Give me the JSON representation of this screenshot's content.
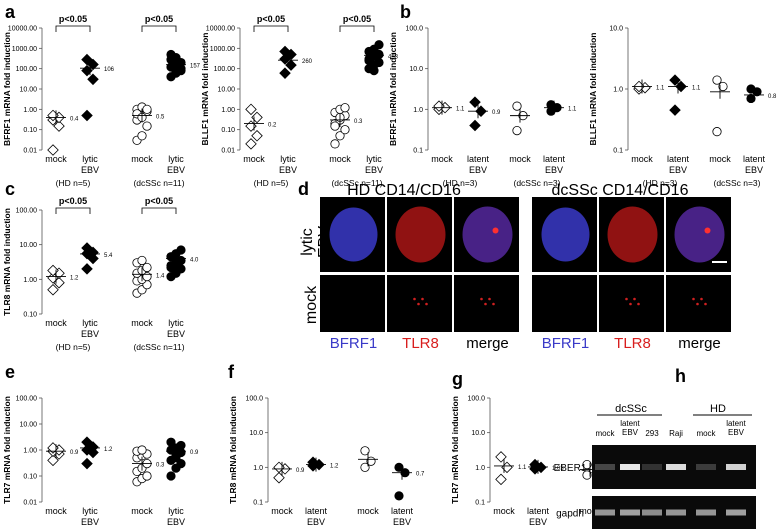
{
  "panel_letters": {
    "a": "a",
    "b": "b",
    "c": "c",
    "d": "d",
    "e": "e",
    "f": "f",
    "g": "g",
    "h": "h"
  },
  "chart_data": [
    {
      "id": "a1",
      "type": "scatter",
      "scale": "log",
      "ylabel": "BFRF1 mRNA fold induction",
      "yticks": [
        "0.01",
        "0.10",
        "1.00",
        "10.00",
        "100.00",
        "1000.00",
        "10000.00"
      ],
      "ylim": [
        0.01,
        10000
      ],
      "groups": [
        {
          "label": "mock",
          "marker": "diamond",
          "fill": "open",
          "mean": 0.4,
          "mean_label": "0.4",
          "values": [
            0.01,
            0.15,
            0.3,
            0.4,
            0.5
          ]
        },
        {
          "label": "lytic\nEBV",
          "marker": "diamond",
          "fill": "filled",
          "mean": 106,
          "mean_label": "106",
          "values": [
            0.5,
            30,
            80,
            160,
            280
          ]
        },
        {
          "label": "mock",
          "marker": "circle",
          "fill": "open",
          "mean": 0.5,
          "mean_label": "0.5",
          "values": [
            0.03,
            0.05,
            0.15,
            0.3,
            0.5,
            0.8,
            1.0,
            1.3,
            1.0,
            0.6,
            0.4
          ]
        },
        {
          "label": "lytic\nEBV",
          "marker": "circle",
          "fill": "filled",
          "mean": 157,
          "mean_label": "157",
          "values": [
            40,
            70,
            100,
            120,
            150,
            200,
            280,
            350,
            80,
            500,
            60
          ]
        }
      ],
      "group_captions": [
        "(HD n=5)",
        "(dcSSc n=11)"
      ],
      "significance": [
        "p<0.05",
        "p<0.05"
      ]
    },
    {
      "id": "a2",
      "type": "scatter",
      "scale": "log",
      "ylabel": "BLLF1 mRNA fold induction",
      "yticks": [
        "0.01",
        "0.10",
        "1.00",
        "10.00",
        "100.00",
        "1000.00",
        "10000.00"
      ],
      "ylim": [
        0.01,
        10000
      ],
      "groups": [
        {
          "label": "mock",
          "marker": "diamond",
          "fill": "open",
          "mean": 0.2,
          "mean_label": "0.2",
          "values": [
            0.02,
            0.05,
            0.15,
            0.4,
            1.0
          ]
        },
        {
          "label": "lytic\nEBV",
          "marker": "diamond",
          "fill": "filled",
          "mean": 260,
          "mean_label": "260",
          "values": [
            60,
            150,
            300,
            500,
            700
          ]
        },
        {
          "label": "mock",
          "marker": "circle",
          "fill": "open",
          "mean": 0.3,
          "mean_label": "0.3",
          "values": [
            0.02,
            0.05,
            0.1,
            0.2,
            0.3,
            0.5,
            0.7,
            1.0,
            1.2,
            0.15,
            0.4
          ]
        },
        {
          "label": "lytic\nEBV",
          "marker": "circle",
          "fill": "filled",
          "mean": 453,
          "mean_label": "453",
          "values": [
            100,
            150,
            200,
            300,
            400,
            500,
            700,
            900,
            1500,
            250,
            80
          ]
        }
      ],
      "group_captions": [
        "(HD n=5)",
        "(dcSSc n=11)"
      ],
      "significance": [
        "p<0.05",
        "p<0.05"
      ]
    },
    {
      "id": "b1",
      "type": "scatter",
      "scale": "log",
      "ylabel": "BFRF1 mRNA fold induction",
      "yticks": [
        "0.1",
        "1.0",
        "10.0",
        "100.0"
      ],
      "ylim": [
        0.1,
        100
      ],
      "groups": [
        {
          "label": "mock",
          "marker": "diamond",
          "fill": "open",
          "mean": 1.1,
          "mean_label": "1.1",
          "values": [
            1.0,
            1.1,
            1.2
          ]
        },
        {
          "label": "latent\nEBV",
          "marker": "diamond",
          "fill": "filled",
          "mean": 0.9,
          "mean_label": "0.9",
          "values": [
            0.4,
            0.9,
            1.5
          ]
        },
        {
          "label": "mock",
          "marker": "circle",
          "fill": "open",
          "mean": 0.7,
          "mean_label": "",
          "values": [
            0.3,
            0.7,
            1.2
          ]
        },
        {
          "label": "latent\nEBV",
          "marker": "circle",
          "fill": "filled",
          "mean": 1.1,
          "mean_label": "1.1",
          "values": [
            0.9,
            1.1,
            1.3
          ]
        }
      ],
      "group_captions": [
        "(HD n=3)",
        "(dcSSc n=3)"
      ],
      "significance": []
    },
    {
      "id": "b2",
      "type": "scatter",
      "scale": "log",
      "ylabel": "BLLF1 mRNA fold induction",
      "yticks": [
        "0.1",
        "1.0",
        "10.0"
      ],
      "ylim": [
        0.1,
        10
      ],
      "groups": [
        {
          "label": "mock",
          "marker": "diamond",
          "fill": "open",
          "mean": 1.1,
          "mean_label": "1.1",
          "values": [
            1.0,
            1.05,
            1.1
          ]
        },
        {
          "label": "latent\nEBV",
          "marker": "diamond",
          "fill": "filled",
          "mean": 1.1,
          "mean_label": "1.1",
          "values": [
            0.45,
            1.1,
            1.4
          ]
        },
        {
          "label": "mock",
          "marker": "circle",
          "fill": "open",
          "mean": 0.9,
          "mean_label": "",
          "values": [
            0.2,
            1.1,
            1.4
          ]
        },
        {
          "label": "latent\nEBV",
          "marker": "circle",
          "fill": "filled",
          "mean": 0.8,
          "mean_label": "0.8",
          "values": [
            0.7,
            0.9,
            1.0
          ]
        }
      ],
      "group_captions": [
        "(HD n=3)",
        "(dcSSc n=3)"
      ],
      "significance": []
    },
    {
      "id": "c",
      "type": "scatter",
      "scale": "log",
      "ylabel": "TLR8 mRNA fold induction",
      "yticks": [
        "0.10",
        "1.00",
        "10.00",
        "100.00"
      ],
      "ylim": [
        0.1,
        100
      ],
      "groups": [
        {
          "label": "mock",
          "marker": "diamond",
          "fill": "open",
          "mean": 1.2,
          "mean_label": "1.2",
          "values": [
            0.5,
            0.8,
            1.1,
            1.5,
            1.8
          ]
        },
        {
          "label": "lytic\nEBV",
          "marker": "diamond",
          "fill": "filled",
          "mean": 5.4,
          "mean_label": "5.4",
          "values": [
            2.0,
            4.0,
            5.5,
            6.0,
            8.0
          ]
        },
        {
          "label": "mock",
          "marker": "circle",
          "fill": "open",
          "mean": 1.4,
          "mean_label": "1.4",
          "values": [
            0.4,
            0.5,
            0.7,
            0.9,
            1.0,
            1.2,
            1.5,
            1.8,
            2.2,
            3.0,
            3.5
          ]
        },
        {
          "label": "lytic\nEBV",
          "marker": "circle",
          "fill": "filled",
          "mean": 4.0,
          "mean_label": "4.0",
          "values": [
            1.2,
            1.5,
            2.0,
            2.5,
            3.0,
            3.5,
            4.5,
            5.5,
            7.0,
            2.2,
            1.8
          ]
        }
      ],
      "group_captions": [
        "(HD n=5)",
        "(dcSSc n=11)"
      ],
      "significance": [
        "p<0.05",
        "p<0.05"
      ]
    },
    {
      "id": "e",
      "type": "scatter",
      "scale": "log",
      "ylabel": "TLR7 mRNA fold induction",
      "yticks": [
        "0.01",
        "0.10",
        "1.00",
        "10.00",
        "100.00"
      ],
      "ylim": [
        0.01,
        100
      ],
      "groups": [
        {
          "label": "mock",
          "marker": "diamond",
          "fill": "open",
          "mean": 0.9,
          "mean_label": "0.9",
          "values": [
            0.4,
            0.7,
            0.9,
            1.0,
            1.2
          ]
        },
        {
          "label": "lytic\nEBV",
          "marker": "diamond",
          "fill": "filled",
          "mean": 1.2,
          "mean_label": "1.2",
          "values": [
            0.3,
            0.8,
            1.0,
            1.3,
            2.0
          ]
        },
        {
          "label": "mock",
          "marker": "circle",
          "fill": "open",
          "mean": 0.3,
          "mean_label": "0.3",
          "values": [
            0.06,
            0.08,
            0.1,
            0.15,
            0.2,
            0.3,
            0.5,
            0.6,
            0.7,
            0.9,
            1.0
          ]
        },
        {
          "label": "lytic\nEBV",
          "marker": "circle",
          "fill": "filled",
          "mean": 0.9,
          "mean_label": "0.9",
          "values": [
            0.1,
            0.2,
            0.3,
            0.4,
            0.6,
            0.8,
            1.0,
            1.2,
            1.5,
            2.0,
            0.5
          ]
        }
      ],
      "group_captions": [
        "(HD n=5)",
        "(dcSSc n=11)"
      ],
      "significance": []
    },
    {
      "id": "f",
      "type": "scatter",
      "scale": "log",
      "ylabel": "TLR8 mRNA fold induction",
      "yticks": [
        "0.1",
        "1.0",
        "10.0",
        "100.0"
      ],
      "ylim": [
        0.1,
        100
      ],
      "groups": [
        {
          "label": "mock",
          "marker": "diamond",
          "fill": "open",
          "mean": 0.9,
          "mean_label": "0.9",
          "values": [
            0.5,
            0.9,
            1.0
          ]
        },
        {
          "label": "latent\nEBV",
          "marker": "diamond",
          "fill": "filled",
          "mean": 1.2,
          "mean_label": "1.2",
          "values": [
            1.1,
            1.2,
            1.4
          ]
        },
        {
          "label": "mock",
          "marker": "circle",
          "fill": "open",
          "mean": 1.7,
          "mean_label": "",
          "values": [
            1.0,
            1.5,
            3.0
          ]
        },
        {
          "label": "latent\nEBV",
          "marker": "circle",
          "fill": "filled",
          "mean": 0.7,
          "mean_label": "0.7",
          "values": [
            0.15,
            0.7,
            1.0
          ]
        }
      ],
      "group_captions": [
        "(HD n=3)",
        "(dcSSc n=3)"
      ],
      "significance": []
    },
    {
      "id": "g",
      "type": "scatter",
      "scale": "log",
      "ylabel": "TLR7 mRNA fold induction",
      "yticks": [
        "0.1",
        "1.0",
        "10.0",
        "100.0"
      ],
      "ylim": [
        0.1,
        100
      ],
      "groups": [
        {
          "label": "mock",
          "marker": "diamond",
          "fill": "open",
          "mean": 1.1,
          "mean_label": "1.1",
          "values": [
            0.45,
            1.0,
            2.0
          ]
        },
        {
          "label": "latent\nEBV",
          "marker": "diamond",
          "fill": "filled",
          "mean": 1.03,
          "mean_label": "1.03",
          "values": [
            0.9,
            1.0,
            1.2
          ]
        },
        {
          "label": "mock",
          "marker": "circle",
          "fill": "open",
          "mean": 0.86,
          "mean_label": "0.86",
          "values": [
            0.6,
            0.9,
            1.2
          ]
        },
        {
          "label": "latent\nEBV",
          "marker": "circle",
          "fill": "filled",
          "mean": 1.1,
          "mean_label": "1.1",
          "values": [
            0.8,
            1.1,
            1.5
          ]
        }
      ],
      "group_captions": [
        "(HD n=3)",
        "(dcSSc n=3)"
      ],
      "significance": []
    }
  ],
  "panel_d": {
    "titles": [
      "HD CD14/CD16",
      "dcSSc CD14/CD16"
    ],
    "row_labels": [
      "lytic\nEBV",
      "mock"
    ],
    "channel_labels": [
      {
        "text": "BFRF1",
        "color": "#3a3ac8"
      },
      {
        "text": "TLR8",
        "color": "#d81e1e"
      },
      {
        "text": "merge",
        "color": "#000000"
      },
      {
        "text": "BFRF1",
        "color": "#3a3ac8"
      },
      {
        "text": "TLR8",
        "color": "#d81e1e"
      },
      {
        "text": "merge",
        "color": "#000000"
      }
    ]
  },
  "panel_h": {
    "groups": [
      "dcSSc",
      "HD"
    ],
    "lanes": [
      "mock",
      "latent\nEBV",
      "293",
      "Raji",
      "mock",
      "latent\nEBV"
    ],
    "rows": [
      "EBER1",
      "gapdh"
    ],
    "eber1_intensity": [
      0.15,
      0.95,
      0.05,
      0.9,
      0.1,
      0.85
    ],
    "gapdh_intensity": [
      0.55,
      0.6,
      0.5,
      0.55,
      0.55,
      0.6
    ]
  }
}
